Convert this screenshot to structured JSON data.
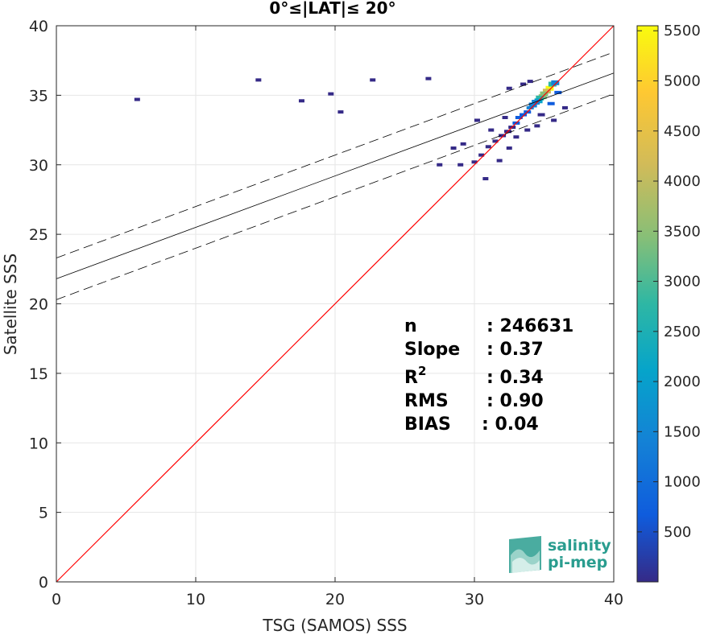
{
  "chart_data": {
    "type": "heatmap",
    "title": "0°≤|LAT|≤ 20°",
    "xlabel": "TSG (SAMOS) SSS",
    "ylabel": "Satellite SSS",
    "xlim": [
      0,
      40
    ],
    "ylim": [
      0,
      40
    ],
    "xticks": [
      "0",
      "10",
      "20",
      "30",
      "40"
    ],
    "yticks": [
      "0",
      "5",
      "10",
      "15",
      "20",
      "25",
      "30",
      "35",
      "40"
    ],
    "grid": true,
    "colorbar": {
      "range": [
        1,
        5550
      ],
      "ticks": [
        "500",
        "1000",
        "1500",
        "2000",
        "2500",
        "3000",
        "3500",
        "4000",
        "4500",
        "5000",
        "5500"
      ],
      "colormap": "parula"
    },
    "lines": {
      "one_to_one": {
        "color": "#ff0000"
      },
      "fit": {
        "intercept": 21.8,
        "slope": 0.37,
        "color": "#000000"
      },
      "fit_upper": {
        "intercept": 23.3,
        "slope": 0.37,
        "style": "dashed"
      },
      "fit_lower": {
        "intercept": 20.3,
        "slope": 0.37,
        "style": "dashed"
      }
    },
    "density_cells": [
      {
        "x": 35.4,
        "y": 35.5,
        "v": 5500
      },
      {
        "x": 35.2,
        "y": 35.3,
        "v": 4200
      },
      {
        "x": 35.0,
        "y": 35.1,
        "v": 3600
      },
      {
        "x": 34.9,
        "y": 34.9,
        "v": 3000
      },
      {
        "x": 34.7,
        "y": 34.8,
        "v": 2400
      },
      {
        "x": 34.6,
        "y": 34.6,
        "v": 1800
      },
      {
        "x": 35.6,
        "y": 35.8,
        "v": 2600
      },
      {
        "x": 35.8,
        "y": 35.9,
        "v": 1500
      },
      {
        "x": 34.4,
        "y": 34.5,
        "v": 1400
      },
      {
        "x": 34.2,
        "y": 34.3,
        "v": 1100
      },
      {
        "x": 34.0,
        "y": 34.1,
        "v": 900
      },
      {
        "x": 33.8,
        "y": 33.8,
        "v": 700
      },
      {
        "x": 33.5,
        "y": 33.6,
        "v": 500
      },
      {
        "x": 33.2,
        "y": 33.4,
        "v": 400
      },
      {
        "x": 33.0,
        "y": 33.0,
        "v": 300
      },
      {
        "x": 32.7,
        "y": 32.7,
        "v": 220
      },
      {
        "x": 32.4,
        "y": 32.4,
        "v": 160
      },
      {
        "x": 32.0,
        "y": 32.1,
        "v": 120
      },
      {
        "x": 31.5,
        "y": 31.7,
        "v": 90
      },
      {
        "x": 31.0,
        "y": 31.3,
        "v": 70
      },
      {
        "x": 30.5,
        "y": 30.7,
        "v": 50
      },
      {
        "x": 30.0,
        "y": 30.2,
        "v": 30
      },
      {
        "x": 29.0,
        "y": 30.0,
        "v": 10
      },
      {
        "x": 30.8,
        "y": 29.0,
        "v": 15
      },
      {
        "x": 31.8,
        "y": 30.3,
        "v": 20
      },
      {
        "x": 32.5,
        "y": 31.2,
        "v": 25
      },
      {
        "x": 33.0,
        "y": 32.0,
        "v": 40
      },
      {
        "x": 33.5,
        "y": 35.8,
        "v": 20
      },
      {
        "x": 34.0,
        "y": 36.0,
        "v": 25
      },
      {
        "x": 32.5,
        "y": 35.5,
        "v": 15
      },
      {
        "x": 34.8,
        "y": 33.6,
        "v": 180
      },
      {
        "x": 35.5,
        "y": 34.4,
        "v": 260
      },
      {
        "x": 36.0,
        "y": 35.2,
        "v": 300
      },
      {
        "x": 36.5,
        "y": 34.1,
        "v": 40
      },
      {
        "x": 35.7,
        "y": 33.2,
        "v": 30
      },
      {
        "x": 34.5,
        "y": 32.8,
        "v": 60
      },
      {
        "x": 33.8,
        "y": 32.5,
        "v": 70
      },
      {
        "x": 32.2,
        "y": 33.4,
        "v": 45
      },
      {
        "x": 31.2,
        "y": 32.5,
        "v": 35
      },
      {
        "x": 30.2,
        "y": 33.2,
        "v": 10
      },
      {
        "x": 29.2,
        "y": 31.5,
        "v": 12
      },
      {
        "x": 28.5,
        "y": 31.2,
        "v": 8
      },
      {
        "x": 27.5,
        "y": 30.0,
        "v": 6
      },
      {
        "x": 5.8,
        "y": 34.7,
        "v": 10
      },
      {
        "x": 14.5,
        "y": 36.1,
        "v": 2
      },
      {
        "x": 17.6,
        "y": 34.6,
        "v": 2
      },
      {
        "x": 19.7,
        "y": 35.1,
        "v": 2
      },
      {
        "x": 20.4,
        "y": 33.8,
        "v": 2
      },
      {
        "x": 22.7,
        "y": 36.1,
        "v": 2
      },
      {
        "x": 26.7,
        "y": 36.2,
        "v": 3
      }
    ],
    "stats": [
      {
        "label": "n",
        "value": ": 246631"
      },
      {
        "label": "Slope",
        "value": ": 0.37"
      },
      {
        "label": "R",
        "sup": "2",
        "value": ": 0.34"
      },
      {
        "label": "RMS",
        "value": ": 0.90"
      },
      {
        "label": "BIAS",
        "value": ": 0.04"
      }
    ]
  },
  "logo": {
    "line1": "salinity",
    "line2": "pi-mep"
  }
}
